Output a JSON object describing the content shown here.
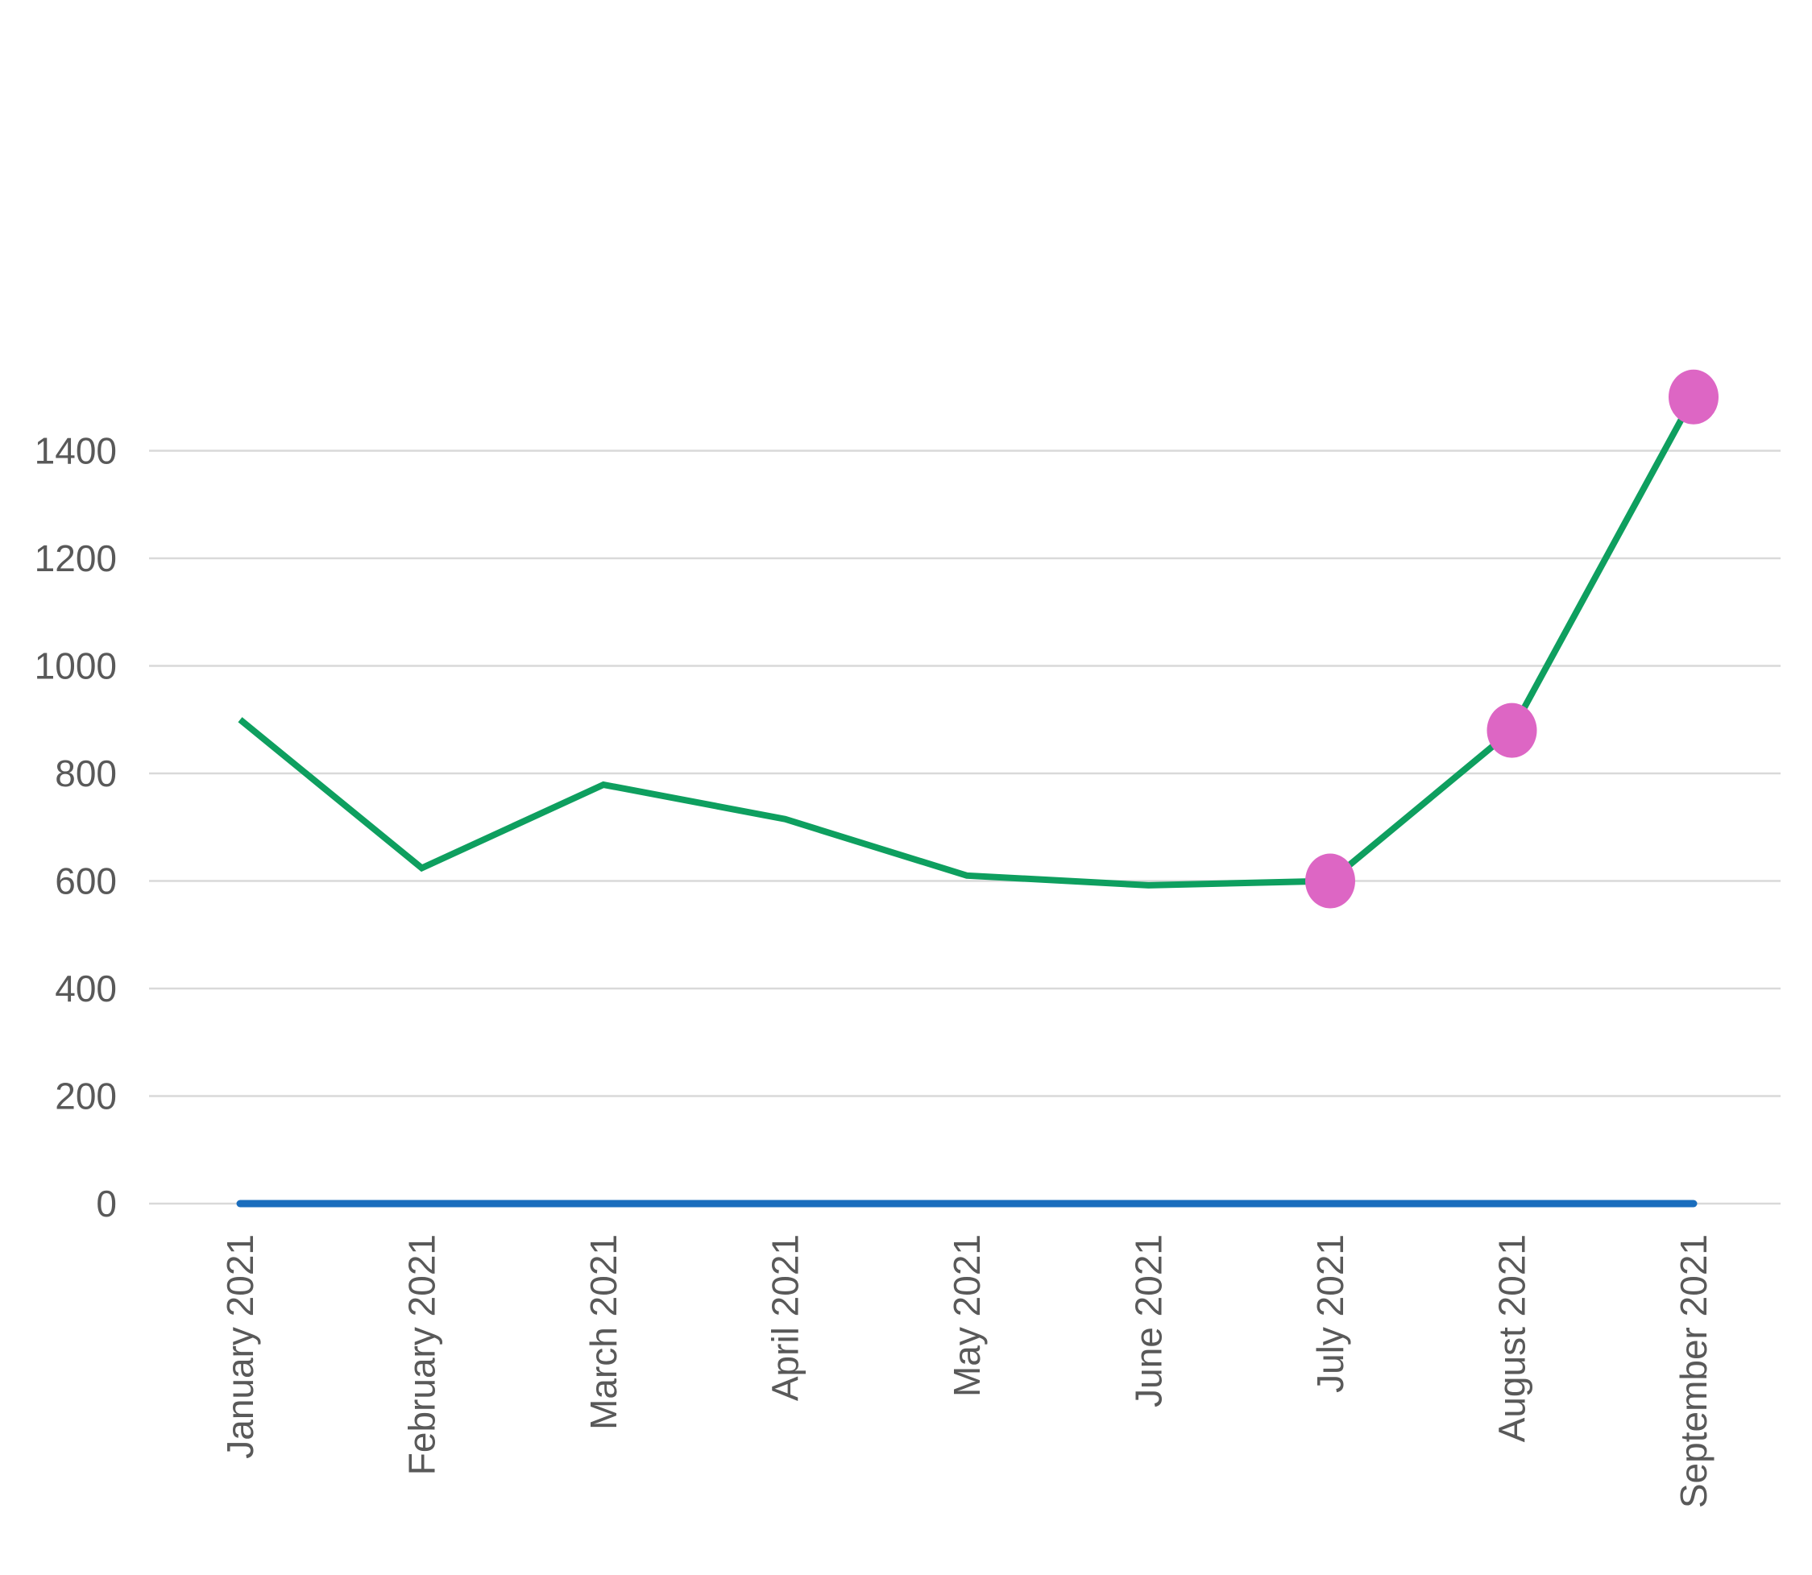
{
  "chart_data": {
    "type": "line",
    "title": "",
    "xlabel": "",
    "ylabel": "",
    "categories": [
      "January 2021",
      "February 2021",
      "March 2021",
      "April 2021",
      "May 2021",
      "June 2021",
      "July 2021",
      "August 2021",
      "September 2021"
    ],
    "ylim": [
      0,
      1500
    ],
    "yticks": [
      0,
      200,
      400,
      600,
      800,
      1000,
      1200,
      1400
    ],
    "grid": true,
    "legend": "none",
    "series": [
      {
        "values": [
          900,
          624,
          779,
          715,
          610,
          592,
          600,
          880,
          1500
        ],
        "color": "#0e9f5f",
        "highlighted_points": [
          6,
          7,
          8
        ],
        "marker_color": "#dd66c4"
      },
      {
        "values": [
          0,
          0,
          0,
          0,
          0,
          0,
          0,
          0,
          0
        ],
        "color": "#1a6dbd"
      }
    ]
  }
}
